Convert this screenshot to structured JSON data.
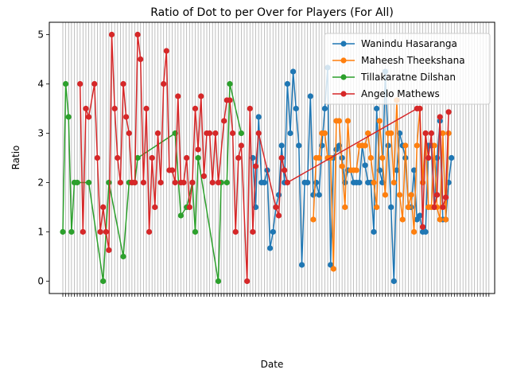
{
  "chart_data": {
    "type": "line",
    "title": "Ratio of Dot to per Over for Players (For All)",
    "xlabel": "Date",
    "ylabel": "Ratio",
    "ylim": [
      -0.25,
      5.25
    ],
    "yticks": [
      0,
      1,
      2,
      3,
      4,
      5
    ],
    "grid": "x-only",
    "legend_position": "top-right",
    "x_tick_count": 149,
    "series": [
      {
        "name": "Wanindu Hasaranga",
        "color": "#1f77b4",
        "points": [
          [
            66,
            2.5
          ],
          [
            67,
            1.5
          ],
          [
            68,
            3.33
          ],
          [
            69,
            2.0
          ],
          [
            70,
            2.0
          ],
          [
            71,
            2.25
          ],
          [
            72,
            0.67
          ],
          [
            73,
            1.0
          ],
          [
            74,
            1.5
          ],
          [
            75,
            1.75
          ],
          [
            76,
            2.75
          ],
          [
            77,
            2.0
          ],
          [
            78,
            4.0
          ],
          [
            79,
            3.0
          ],
          [
            80,
            4.25
          ],
          [
            81,
            3.5
          ],
          [
            82,
            2.75
          ],
          [
            83,
            0.33
          ],
          [
            84,
            2.0
          ],
          [
            85,
            2.0
          ],
          [
            86,
            3.75
          ],
          [
            87,
            1.75
          ],
          [
            88,
            2.0
          ],
          [
            89,
            1.75
          ],
          [
            90,
            2.75
          ],
          [
            91,
            3.5
          ],
          [
            92,
            4.33
          ],
          [
            93,
            0.33
          ],
          [
            94,
            2.5
          ],
          [
            95,
            2.67
          ],
          [
            96,
            2.75
          ],
          [
            97,
            2.5
          ],
          [
            98,
            2.0
          ],
          [
            99,
            2.25
          ],
          [
            100,
            2.25
          ],
          [
            101,
            2.0
          ],
          [
            102,
            2.0
          ],
          [
            103,
            2.0
          ],
          [
            104,
            2.75
          ],
          [
            105,
            2.35
          ],
          [
            106,
            2.0
          ],
          [
            107,
            2.0
          ],
          [
            108,
            1.0
          ],
          [
            109,
            3.5
          ],
          [
            110,
            2.25
          ],
          [
            111,
            2.0
          ],
          [
            112,
            4.25
          ],
          [
            113,
            2.75
          ],
          [
            114,
            1.5
          ],
          [
            115,
            0.0
          ],
          [
            116,
            2.25
          ],
          [
            117,
            3.0
          ],
          [
            118,
            2.75
          ],
          [
            119,
            2.5
          ],
          [
            120,
            1.5
          ],
          [
            121,
            1.5
          ],
          [
            122,
            2.25
          ],
          [
            123,
            1.25
          ],
          [
            124,
            1.33
          ],
          [
            125,
            1.0
          ],
          [
            126,
            1.0
          ],
          [
            127,
            2.75
          ],
          [
            128,
            2.75
          ],
          [
            129,
            1.5
          ],
          [
            130,
            2.5
          ],
          [
            131,
            3.25
          ],
          [
            132,
            1.25
          ],
          [
            133,
            1.25
          ],
          [
            134,
            2.0
          ],
          [
            135,
            2.5
          ]
        ]
      },
      {
        "name": "Maheesh Theekshana",
        "color": "#ff7f0e",
        "points": [
          [
            87,
            1.25
          ],
          [
            88,
            2.5
          ],
          [
            89,
            2.5
          ],
          [
            90,
            3.0
          ],
          [
            91,
            3.0
          ],
          [
            92,
            2.5
          ],
          [
            93,
            2.5
          ],
          [
            94,
            0.25
          ],
          [
            95,
            3.25
          ],
          [
            96,
            3.25
          ],
          [
            97,
            2.33
          ],
          [
            98,
            1.5
          ],
          [
            99,
            3.25
          ],
          [
            100,
            2.25
          ],
          [
            101,
            2.25
          ],
          [
            102,
            2.25
          ],
          [
            103,
            2.75
          ],
          [
            104,
            2.75
          ],
          [
            105,
            2.75
          ],
          [
            106,
            3.0
          ],
          [
            107,
            2.5
          ],
          [
            108,
            2.0
          ],
          [
            109,
            1.5
          ],
          [
            110,
            3.25
          ],
          [
            111,
            2.5
          ],
          [
            112,
            1.75
          ],
          [
            113,
            3.0
          ],
          [
            114,
            3.0
          ],
          [
            115,
            2.0
          ],
          [
            116,
            3.67
          ],
          [
            117,
            1.75
          ],
          [
            118,
            1.25
          ],
          [
            119,
            2.75
          ],
          [
            120,
            1.5
          ],
          [
            121,
            1.75
          ],
          [
            122,
            1.0
          ],
          [
            123,
            2.75
          ],
          [
            124,
            3.5
          ],
          [
            125,
            2.0
          ],
          [
            126,
            3.0
          ],
          [
            127,
            1.5
          ],
          [
            128,
            1.5
          ],
          [
            129,
            2.75
          ],
          [
            130,
            1.5
          ],
          [
            131,
            1.25
          ],
          [
            132,
            3.0
          ],
          [
            133,
            1.25
          ],
          [
            134,
            3.0
          ]
        ]
      },
      {
        "name": "Tillakaratne Dilshan",
        "color": "#2ca02c",
        "points": [
          [
            0,
            1.0
          ],
          [
            1,
            4.0
          ],
          [
            2,
            3.33
          ],
          [
            3,
            1.0
          ],
          [
            4,
            2.0
          ],
          [
            5,
            2.0
          ],
          [
            9,
            2.0
          ],
          [
            14,
            0.0
          ],
          [
            16,
            2.0
          ],
          [
            21,
            0.5
          ],
          [
            23,
            2.0
          ],
          [
            24,
            2.0
          ],
          [
            25,
            2.0
          ],
          [
            26,
            2.5
          ],
          [
            39,
            3.0
          ],
          [
            41,
            1.33
          ],
          [
            43,
            1.5
          ],
          [
            45,
            2.0
          ],
          [
            46,
            1.0
          ],
          [
            47,
            2.5
          ],
          [
            54,
            0.0
          ],
          [
            55,
            2.0
          ],
          [
            57,
            2.0
          ],
          [
            58,
            4.0
          ],
          [
            62,
            3.0
          ]
        ]
      },
      {
        "name": "Angelo Mathews",
        "color": "#d62728",
        "points": [
          [
            6,
            4.0
          ],
          [
            7,
            1.0
          ],
          [
            8,
            3.5
          ],
          [
            9,
            3.33
          ],
          [
            11,
            4.0
          ],
          [
            12,
            2.5
          ],
          [
            13,
            1.0
          ],
          [
            14,
            1.5
          ],
          [
            15,
            1.0
          ],
          [
            16,
            0.63
          ],
          [
            17,
            5.0
          ],
          [
            18,
            3.5
          ],
          [
            19,
            2.5
          ],
          [
            20,
            2.0
          ],
          [
            21,
            4.0
          ],
          [
            22,
            3.33
          ],
          [
            23,
            3.0
          ],
          [
            24,
            2.0
          ],
          [
            25,
            2.0
          ],
          [
            26,
            5.0
          ],
          [
            27,
            4.5
          ],
          [
            28,
            2.0
          ],
          [
            29,
            3.5
          ],
          [
            30,
            1.0
          ],
          [
            31,
            2.5
          ],
          [
            32,
            1.5
          ],
          [
            33,
            3.0
          ],
          [
            34,
            2.0
          ],
          [
            35,
            4.0
          ],
          [
            36,
            4.67
          ],
          [
            37,
            2.25
          ],
          [
            38,
            2.25
          ],
          [
            39,
            2.0
          ],
          [
            40,
            3.75
          ],
          [
            41,
            2.0
          ],
          [
            42,
            2.0
          ],
          [
            43,
            2.5
          ],
          [
            44,
            1.5
          ],
          [
            45,
            2.0
          ],
          [
            46,
            3.5
          ],
          [
            47,
            2.67
          ],
          [
            48,
            3.75
          ],
          [
            49,
            2.13
          ],
          [
            50,
            3.0
          ],
          [
            51,
            3.0
          ],
          [
            52,
            2.0
          ],
          [
            53,
            3.0
          ],
          [
            54,
            2.0
          ],
          [
            56,
            3.25
          ],
          [
            57,
            3.67
          ],
          [
            58,
            3.67
          ],
          [
            59,
            3.0
          ],
          [
            60,
            1.0
          ],
          [
            61,
            2.5
          ],
          [
            62,
            2.75
          ],
          [
            64,
            0.0
          ],
          [
            65,
            3.5
          ],
          [
            66,
            1.0
          ],
          [
            67,
            2.33
          ],
          [
            68,
            3.0
          ],
          [
            74,
            1.5
          ],
          [
            75,
            1.33
          ],
          [
            76,
            2.5
          ],
          [
            77,
            2.25
          ],
          [
            78,
            2.0
          ],
          [
            123,
            3.5
          ],
          [
            124,
            3.5
          ],
          [
            125,
            1.1
          ],
          [
            126,
            3.0
          ],
          [
            127,
            2.5
          ],
          [
            128,
            3.0
          ],
          [
            129,
            1.5
          ],
          [
            130,
            1.75
          ],
          [
            131,
            3.33
          ],
          [
            132,
            1.5
          ],
          [
            133,
            1.7
          ],
          [
            134,
            3.43
          ]
        ]
      }
    ]
  }
}
